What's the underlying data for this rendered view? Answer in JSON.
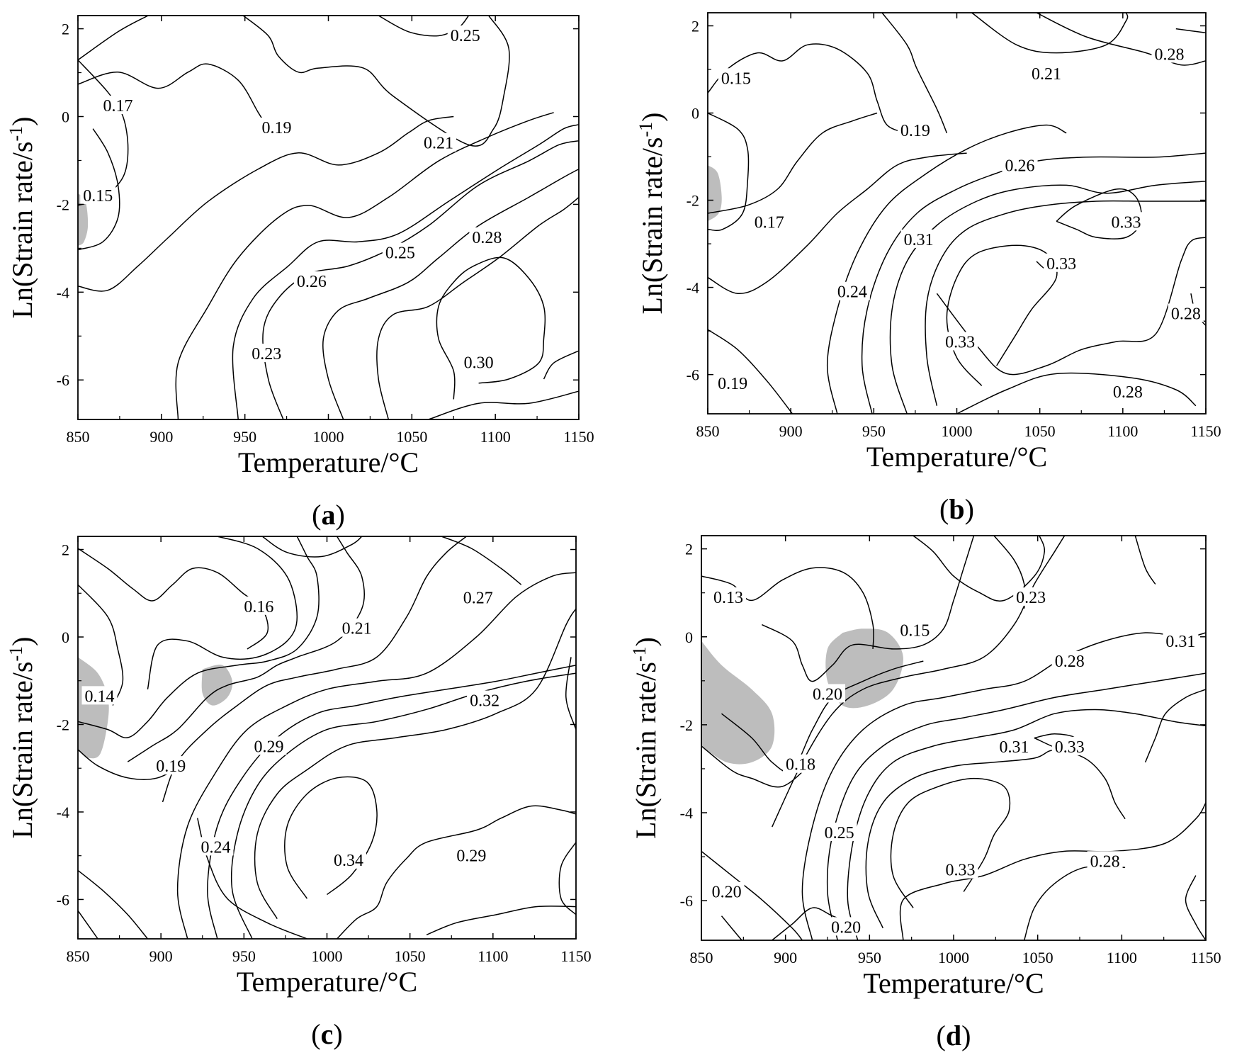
{
  "figure": {
    "colors": {
      "contour_line": "#000000",
      "instability_fill": "#bdbdbd",
      "background": "#ffffff"
    }
  },
  "chart_data": [
    {
      "panel": "a",
      "panel_label": "(a)",
      "type": "contour",
      "xlabel": "Temperature/°C",
      "ylabel": "Ln(Strain rate/s-1)",
      "xlim": [
        850,
        1150
      ],
      "ylim": [
        -6.9,
        2.3
      ],
      "xticks": [
        850,
        900,
        950,
        1000,
        1050,
        1100,
        1150
      ],
      "yticks": [
        2,
        0,
        -2,
        -4,
        -6
      ],
      "contour_labels": [
        {
          "text": "0.25",
          "x": 1082,
          "y": 1.85
        },
        {
          "text": "0.17",
          "x": 874,
          "y": 0.25
        },
        {
          "text": "0.19",
          "x": 969,
          "y": -0.25
        },
        {
          "text": "0.21",
          "x": 1066,
          "y": -0.6
        },
        {
          "text": "0.15",
          "x": 862,
          "y": -1.8
        },
        {
          "text": "0.25",
          "x": 1043,
          "y": -3.1
        },
        {
          "text": "0.28",
          "x": 1095,
          "y": -2.75
        },
        {
          "text": "0.26",
          "x": 990,
          "y": -3.75
        },
        {
          "text": "0.23",
          "x": 963,
          "y": -5.4
        },
        {
          "text": "0.30",
          "x": 1090,
          "y": -5.6
        }
      ],
      "instability_regions": 1
    },
    {
      "panel": "b",
      "panel_label": "(b)",
      "type": "contour",
      "xlabel": "Temperature/°C",
      "ylabel": "Ln(Strain rate/s-1)",
      "xlim": [
        850,
        1150
      ],
      "ylim": [
        -6.9,
        2.3
      ],
      "xticks": [
        850,
        900,
        950,
        1000,
        1050,
        1100,
        1150
      ],
      "yticks": [
        2,
        0,
        -2,
        -4,
        -6
      ],
      "contour_labels": [
        {
          "text": "0.28",
          "x": 1128,
          "y": 1.35
        },
        {
          "text": "0.15",
          "x": 867,
          "y": 0.8
        },
        {
          "text": "0.21",
          "x": 1054,
          "y": 0.9
        },
        {
          "text": "0.19",
          "x": 975,
          "y": -0.4
        },
        {
          "text": "0.26",
          "x": 1038,
          "y": -1.2
        },
        {
          "text": "0.17",
          "x": 887,
          "y": -2.5
        },
        {
          "text": "0.31",
          "x": 977,
          "y": -2.9
        },
        {
          "text": "0.33",
          "x": 1102,
          "y": -2.5
        },
        {
          "text": "0.33",
          "x": 1063,
          "y": -3.45
        },
        {
          "text": "0.24",
          "x": 937,
          "y": -4.1
        },
        {
          "text": "0.28",
          "x": 1138,
          "y": -4.6
        },
        {
          "text": "0.33",
          "x": 1002,
          "y": -5.25
        },
        {
          "text": "0.19",
          "x": 865,
          "y": -6.2
        },
        {
          "text": "0.28",
          "x": 1103,
          "y": -6.4
        }
      ],
      "instability_regions": 1
    },
    {
      "panel": "c",
      "panel_label": "(c)",
      "type": "contour",
      "xlabel": "Temperature/°C",
      "ylabel": "Ln(Strain rate/s-1)",
      "xlim": [
        850,
        1150
      ],
      "ylim": [
        -6.9,
        2.3
      ],
      "xticks": [
        850,
        900,
        950,
        1000,
        1050,
        1100,
        1150
      ],
      "yticks": [
        2,
        0,
        -2,
        -4,
        -6
      ],
      "contour_labels": [
        {
          "text": "0.27",
          "x": 1091,
          "y": 0.9
        },
        {
          "text": "0.16",
          "x": 959,
          "y": 0.7
        },
        {
          "text": "0.21",
          "x": 1018,
          "y": 0.2
        },
        {
          "text": "0.14",
          "x": 863,
          "y": -1.35
        },
        {
          "text": "0.32",
          "x": 1095,
          "y": -1.45
        },
        {
          "text": "0.29",
          "x": 965,
          "y": -2.5
        },
        {
          "text": "0.19",
          "x": 906,
          "y": -2.95
        },
        {
          "text": "0.24",
          "x": 933,
          "y": -4.8
        },
        {
          "text": "0.34",
          "x": 1013,
          "y": -5.1
        },
        {
          "text": "0.29",
          "x": 1087,
          "y": -5.0
        }
      ],
      "instability_regions": 2
    },
    {
      "panel": "d",
      "panel_label": "(d)",
      "type": "contour",
      "xlabel": "Temperature/°C",
      "ylabel": "Ln(Strain rate/s-1)",
      "xlim": [
        850,
        1150
      ],
      "ylim": [
        -6.9,
        2.3
      ],
      "xticks": [
        850,
        900,
        950,
        1000,
        1050,
        1100,
        1150
      ],
      "yticks": [
        2,
        0,
        -2,
        -4,
        -6
      ],
      "contour_labels": [
        {
          "text": "0.13",
          "x": 866,
          "y": 0.9
        },
        {
          "text": "0.23",
          "x": 1046,
          "y": 0.9
        },
        {
          "text": "0.15",
          "x": 977,
          "y": 0.15
        },
        {
          "text": "0.31",
          "x": 1135,
          "y": -0.1
        },
        {
          "text": "0.28",
          "x": 1069,
          "y": -0.55
        },
        {
          "text": "0.20",
          "x": 925,
          "y": -1.3
        },
        {
          "text": "0.31",
          "x": 1036,
          "y": -2.5
        },
        {
          "text": "0.33",
          "x": 1069,
          "y": -2.5
        },
        {
          "text": "0.18",
          "x": 909,
          "y": -2.9
        },
        {
          "text": "0.25",
          "x": 932,
          "y": -4.45
        },
        {
          "text": "0.33",
          "x": 1004,
          "y": -5.3
        },
        {
          "text": "0.28",
          "x": 1090,
          "y": -5.1
        },
        {
          "text": "0.20",
          "x": 865,
          "y": -5.8
        },
        {
          "text": "0.20",
          "x": 936,
          "y": -6.6
        }
      ],
      "instability_regions": 2
    }
  ]
}
